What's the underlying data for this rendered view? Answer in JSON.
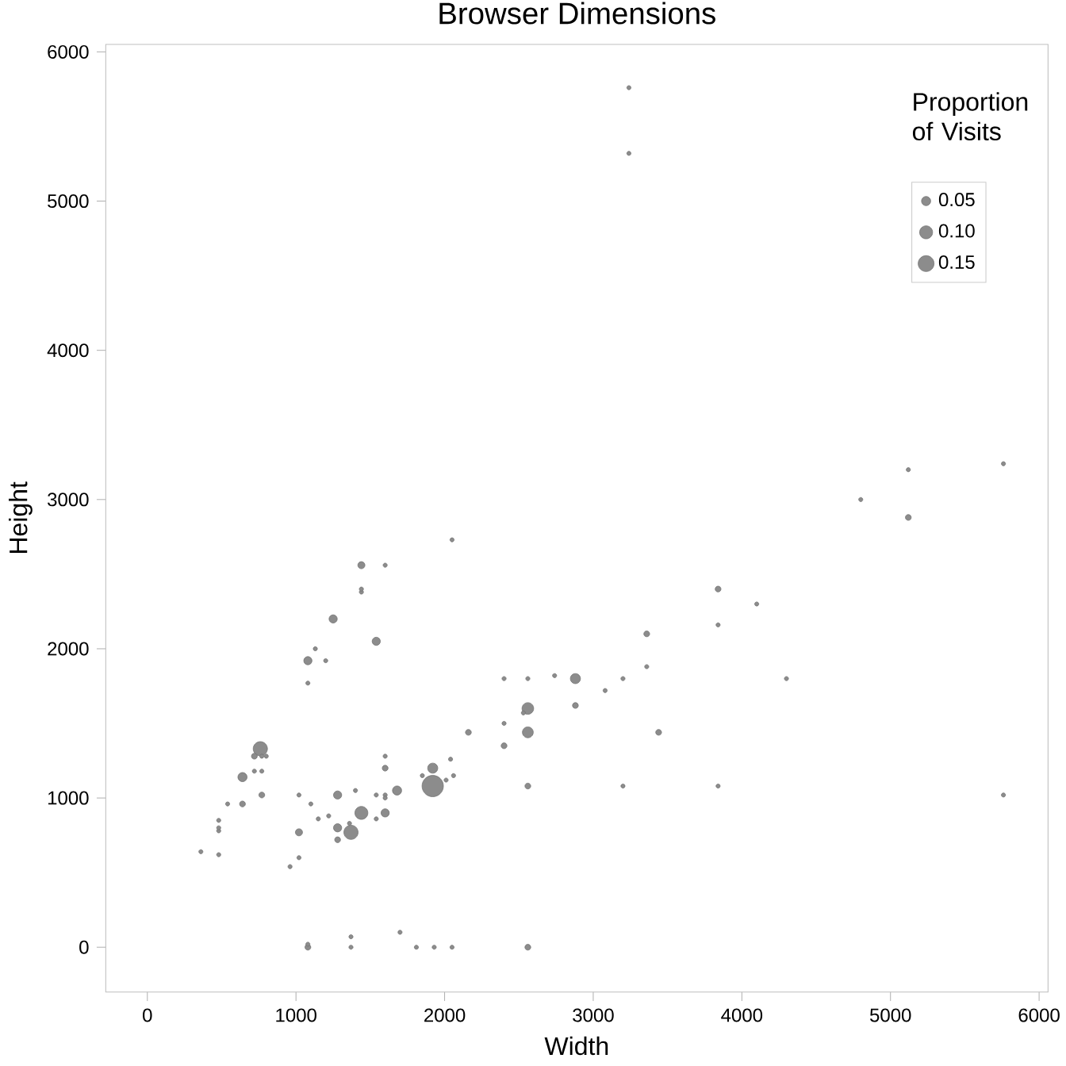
{
  "chart_data": {
    "type": "bubble",
    "title": "Browser Dimensions",
    "xlabel": "Width",
    "ylabel": "Height",
    "legend_title": "Proportion of Visits",
    "xlim": [
      -280,
      6060
    ],
    "ylim": [
      -300,
      6050
    ],
    "xticks": [
      0,
      1000,
      2000,
      3000,
      4000,
      5000,
      6000
    ],
    "yticks": [
      0,
      1000,
      2000,
      3000,
      4000,
      5000,
      6000
    ],
    "grid": false,
    "size_legend": [
      {
        "value": 0.05,
        "label": "0.05"
      },
      {
        "value": 0.1,
        "label": "0.10"
      },
      {
        "value": 0.15,
        "label": "0.15"
      }
    ],
    "series": [
      {
        "color": "#8c8c8c",
        "x": [
          360,
          480,
          480,
          480,
          480,
          540,
          640,
          640,
          760,
          720,
          770,
          800,
          720,
          770,
          770,
          960,
          1020,
          1020,
          1020,
          1100,
          1150,
          1220,
          1280,
          1280,
          1280,
          1370,
          1360,
          1440,
          1400,
          1540,
          1600,
          1600,
          1600,
          1600,
          1540,
          1600,
          1680,
          1920,
          1920,
          1850,
          2010,
          2040,
          2060,
          2160,
          2400,
          2400,
          2400,
          2560,
          2560,
          2560,
          2530,
          2560,
          2740,
          2050,
          1440,
          1600,
          1440,
          1440,
          1250,
          1540,
          1080,
          1130,
          1200,
          1080,
          1080,
          1080,
          1370,
          1370,
          1700,
          1810,
          1930,
          2050,
          2560,
          3840,
          4100,
          3840,
          3360,
          3360,
          3200,
          4300,
          2880,
          3080,
          2880,
          3440,
          3200,
          3840,
          5760,
          3240,
          3240,
          5120,
          5760,
          4800,
          5120
        ],
        "values": [
          640,
          620,
          780,
          800,
          850,
          960,
          960,
          1140,
          1330,
          1280,
          1280,
          1280,
          1180,
          1180,
          1020,
          540,
          600,
          770,
          1020,
          960,
          860,
          880,
          1020,
          800,
          720,
          770,
          830,
          900,
          1050,
          1020,
          1020,
          1000,
          1200,
          1280,
          860,
          900,
          1050,
          1200,
          1080,
          1150,
          1120,
          1260,
          1150,
          1440,
          1350,
          1500,
          1800,
          1600,
          1440,
          1800,
          1570,
          1080,
          1820,
          2730,
          2560,
          2560,
          2380,
          2400,
          2200,
          2050,
          1920,
          2000,
          1920,
          1770,
          0,
          20,
          70,
          0,
          100,
          0,
          0,
          0,
          0,
          2400,
          2300,
          2160,
          2100,
          1880,
          1800,
          1800,
          1800,
          1720,
          1620,
          1440,
          1080,
          1080,
          1020,
          5760,
          5320,
          3200,
          3240,
          3000,
          2880
        ],
        "sizes": [
          0.01,
          0.01,
          0.01,
          0.01,
          0.01,
          0.01,
          0.02,
          0.05,
          0.12,
          0.02,
          0.01,
          0.01,
          0.01,
          0.01,
          0.02,
          0.01,
          0.01,
          0.03,
          0.01,
          0.01,
          0.01,
          0.01,
          0.04,
          0.04,
          0.02,
          0.12,
          0.01,
          0.1,
          0.01,
          0.01,
          0.01,
          0.01,
          0.02,
          0.01,
          0.01,
          0.04,
          0.05,
          0.06,
          0.27,
          0.01,
          0.01,
          0.01,
          0.01,
          0.02,
          0.02,
          0.01,
          0.01,
          0.08,
          0.07,
          0.01,
          0.01,
          0.02,
          0.01,
          0.01,
          0.03,
          0.01,
          0.01,
          0.01,
          0.04,
          0.04,
          0.04,
          0.01,
          0.01,
          0.01,
          0.02,
          0.01,
          0.01,
          0.01,
          0.01,
          0.01,
          0.01,
          0.01,
          0.02,
          0.02,
          0.01,
          0.01,
          0.02,
          0.01,
          0.01,
          0.01,
          0.06,
          0.01,
          0.02,
          0.02,
          0.01,
          0.01,
          0.01,
          0.01,
          0.01,
          0.01,
          0.01,
          0.01,
          0.02
        ]
      }
    ]
  }
}
